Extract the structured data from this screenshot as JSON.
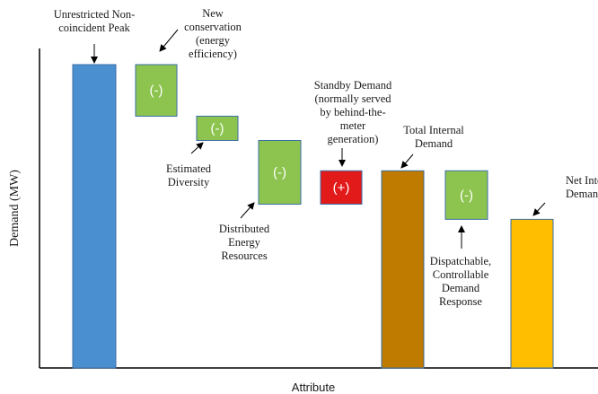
{
  "chart_data": {
    "type": "bar",
    "subtype": "waterfall",
    "xlabel": "Attribute",
    "ylabel": "Demand (MW)",
    "grid": false,
    "legend": "none",
    "steps": [
      {
        "label_lines": [
          "Unrestricted Non-",
          "coincident Peak"
        ],
        "kind": "total",
        "start": 0,
        "end": 100,
        "color": "#4a90d0",
        "sign": ""
      },
      {
        "label_lines": [
          "New",
          "conservation",
          "(energy",
          "efficiency)"
        ],
        "kind": "decrease",
        "start": 100,
        "end": 83,
        "color": "#8dc44f",
        "sign": "(-)"
      },
      {
        "label_lines": [
          "Estimated",
          "Diversity"
        ],
        "kind": "decrease",
        "start": 83,
        "end": 75,
        "color": "#8dc44f",
        "sign": "(-)"
      },
      {
        "label_lines": [
          "Distributed",
          "Energy",
          "Resources"
        ],
        "kind": "decrease",
        "start": 75,
        "end": 54,
        "color": "#8dc44f",
        "sign": "(-)"
      },
      {
        "label_lines": [
          "Standby Demand",
          "(normally served",
          "by behind-the-",
          "meter",
          "generation)"
        ],
        "kind": "increase",
        "start": 54,
        "end": 65,
        "color": "#e21a1a",
        "sign": "(+)"
      },
      {
        "label_lines": [
          "Total Internal",
          "Demand"
        ],
        "kind": "total",
        "start": 0,
        "end": 65,
        "color": "#bf7a00",
        "sign": ""
      },
      {
        "label_lines": [
          "Dispatchable,",
          "Controllable",
          "Demand",
          "Response"
        ],
        "kind": "decrease",
        "start": 65,
        "end": 49,
        "color": "#8dc44f",
        "sign": "(-)"
      },
      {
        "label_lines": [
          "Net Internal",
          "Demand"
        ],
        "kind": "total",
        "start": 0,
        "end": 49,
        "color": "#ffbf00",
        "sign": ""
      }
    ]
  }
}
